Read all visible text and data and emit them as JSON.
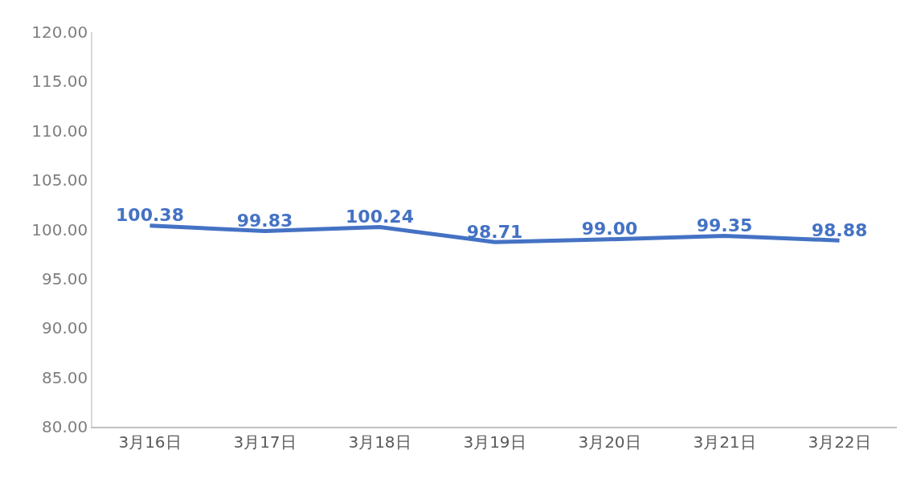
{
  "chart_data": {
    "type": "line",
    "categories": [
      "3月16日",
      "3月17日",
      "3月18日",
      "3月19日",
      "3月20日",
      "3月21日",
      "3月22日"
    ],
    "series": [
      {
        "color": "#4472c4",
        "values": [
          100.38,
          99.83,
          100.24,
          98.71,
          99.0,
          99.35,
          98.88
        ],
        "value_labels": [
          "100.38",
          "99.83",
          "100.24",
          "98.71",
          "99.00",
          "99.35",
          "98.88"
        ]
      }
    ],
    "ylim": [
      80,
      120
    ],
    "yticks": [
      {
        "value": 80,
        "label": "80.00"
      },
      {
        "value": 85,
        "label": "85.00"
      },
      {
        "value": 90,
        "label": "90.00"
      },
      {
        "value": 95,
        "label": "95.00"
      },
      {
        "value": 100,
        "label": "100.00"
      },
      {
        "value": 105,
        "label": "105.00"
      },
      {
        "value": 110,
        "label": "110.00"
      },
      {
        "value": 115,
        "label": "115.00"
      },
      {
        "value": 120,
        "label": "120.00"
      }
    ],
    "marker": "none",
    "line_style": "solid"
  }
}
